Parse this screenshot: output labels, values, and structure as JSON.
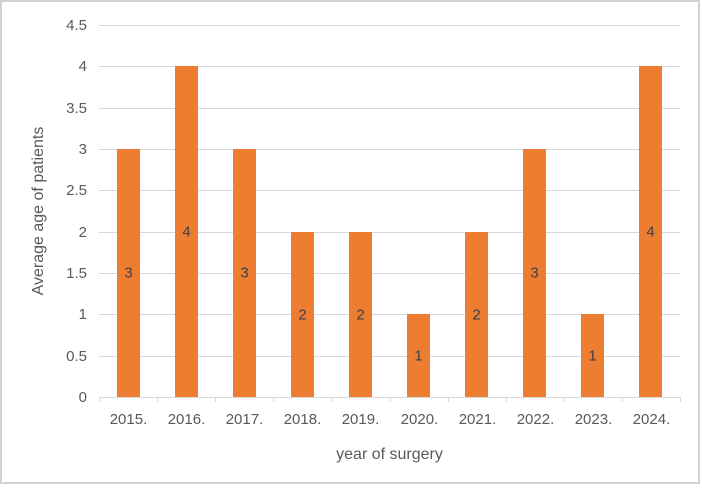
{
  "chart_data": {
    "type": "bar",
    "title": "",
    "xlabel": "year of surgery",
    "ylabel": "Average age of patients",
    "categories": [
      "2015.",
      "2016.",
      "2017.",
      "2018.",
      "2019.",
      "2020.",
      "2021.",
      "2022.",
      "2023.",
      "2024."
    ],
    "values": [
      3,
      4,
      3,
      2,
      2,
      1,
      2,
      3,
      1,
      4
    ],
    "bar_labels": [
      "3",
      "4",
      "3",
      "2",
      "2",
      "1",
      "2",
      "3",
      "1",
      "4"
    ],
    "bar_label_position": "inside-center",
    "yticks": [
      "0",
      "0.5",
      "1",
      "1.5",
      "2",
      "2.5",
      "3",
      "3.5",
      "4",
      "4.5"
    ],
    "ylim": [
      0,
      4.5
    ],
    "ytick_step": 0.5,
    "grid": "horizontal",
    "legend": "none",
    "colors": {
      "bar": "#ED7D31",
      "gridline": "#D9D9D9",
      "axis_line": "#D9D9D9",
      "tick_text": "#595959",
      "title_text": "#595959",
      "bar_label_text": "#404040",
      "frame_border": "#D3D3D3"
    }
  }
}
